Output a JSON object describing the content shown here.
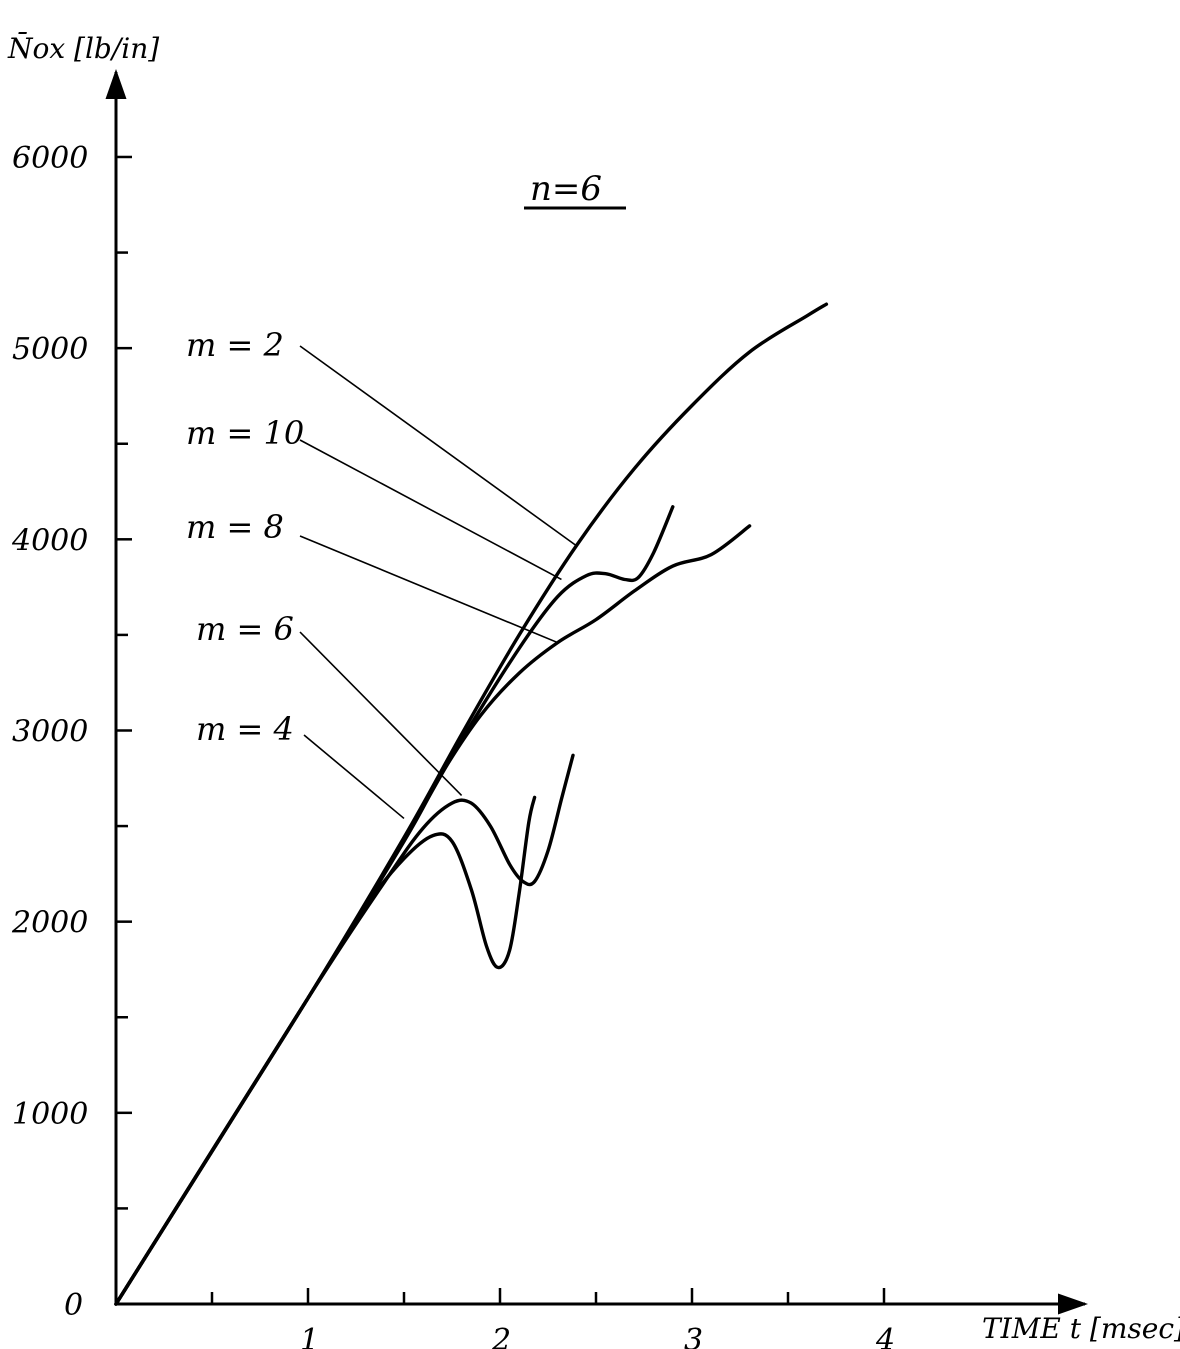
{
  "chart_data": {
    "type": "line",
    "title": "n=6",
    "xlabel": "TIME t [msec]",
    "ylabel": "N̄ox [lb/in]",
    "xlim": [
      0,
      4.6
    ],
    "ylim": [
      0,
      6000
    ],
    "x_ticks": [
      {
        "value": 1,
        "label": "1"
      },
      {
        "value": 2,
        "label": "2"
      },
      {
        "value": 3,
        "label": "3"
      },
      {
        "value": 4,
        "label": "4"
      }
    ],
    "x_minor_ticks": [
      0.5,
      1.5,
      2.5,
      3.5
    ],
    "y_ticks": [
      {
        "value": 0,
        "label": "0"
      },
      {
        "value": 1000,
        "label": "1000"
      },
      {
        "value": 2000,
        "label": "2000"
      },
      {
        "value": 3000,
        "label": "3000"
      },
      {
        "value": 4000,
        "label": "4000"
      },
      {
        "value": 5000,
        "label": "5000"
      },
      {
        "value": 6000,
        "label": "6000"
      }
    ],
    "y_minor_ticks": [
      500,
      1500,
      2500,
      3500,
      4500,
      5500
    ],
    "series": [
      {
        "name": "m = 2",
        "x": [
          0,
          0.5,
          1.0,
          1.5,
          1.8,
          2.1,
          2.4,
          2.7,
          3.0,
          3.3,
          3.6,
          3.7
        ],
        "y": [
          0,
          800,
          1600,
          2440,
          2980,
          3500,
          3970,
          4370,
          4700,
          4980,
          5170,
          5230
        ]
      },
      {
        "name": "m = 10",
        "x": [
          0,
          1.0,
          1.5,
          1.8,
          2.1,
          2.3,
          2.45,
          2.55,
          2.65,
          2.72,
          2.8,
          2.9
        ],
        "y": [
          0,
          1600,
          2430,
          2950,
          3430,
          3700,
          3810,
          3820,
          3790,
          3800,
          3930,
          4170
        ]
      },
      {
        "name": "m = 8",
        "x": [
          0,
          1.0,
          1.5,
          1.7,
          1.9,
          2.1,
          2.3,
          2.5,
          2.7,
          2.9,
          3.1,
          3.3
        ],
        "y": [
          0,
          1600,
          2420,
          2780,
          3080,
          3300,
          3460,
          3580,
          3730,
          3860,
          3920,
          4070
        ]
      },
      {
        "name": "m = 6",
        "x": [
          0,
          1.0,
          1.4,
          1.6,
          1.75,
          1.85,
          1.95,
          2.05,
          2.12,
          2.18,
          2.25,
          2.32,
          2.38
        ],
        "y": [
          0,
          1600,
          2210,
          2490,
          2620,
          2620,
          2500,
          2300,
          2210,
          2210,
          2370,
          2640,
          2870
        ]
      },
      {
        "name": "m = 4",
        "x": [
          0,
          1.0,
          1.3,
          1.5,
          1.65,
          1.75,
          1.85,
          1.93,
          1.99,
          2.05,
          2.1,
          2.15,
          2.18
        ],
        "y": [
          0,
          1600,
          2080,
          2330,
          2450,
          2420,
          2170,
          1870,
          1760,
          1850,
          2150,
          2520,
          2650
        ]
      }
    ],
    "annotations": [
      {
        "text": "m = 2",
        "series": "m = 2"
      },
      {
        "text": "m = 10",
        "series": "m = 10"
      },
      {
        "text": "m = 8",
        "series": "m = 8"
      },
      {
        "text": "m = 6",
        "series": "m = 6"
      },
      {
        "text": "m = 4",
        "series": "m = 4"
      }
    ],
    "grid": false,
    "legend": "none"
  }
}
